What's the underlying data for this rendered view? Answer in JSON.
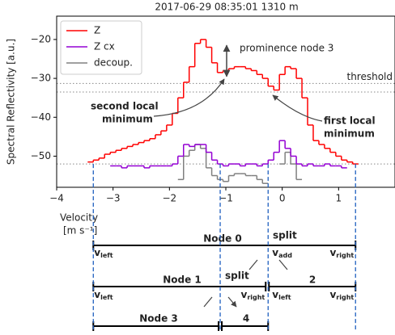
{
  "chart_data": {
    "type": "step",
    "title": "2017-06-29 08:35:01   1310 m",
    "ylabel": "Spectral Reflectivity [a.u.]",
    "xlabel": [
      "Velocity",
      "[m s⁻¹]"
    ],
    "x": [
      -3.4,
      -3.3,
      -3.2,
      -3.1,
      -3.0,
      -2.9,
      -2.8,
      -2.7,
      -2.6,
      -2.5,
      -2.4,
      -2.3,
      -2.2,
      -2.1,
      -2.0,
      -1.9,
      -1.8,
      -1.7,
      -1.6,
      -1.5,
      -1.4,
      -1.3,
      -1.2,
      -1.1,
      -1.0,
      -0.9,
      -0.8,
      -0.7,
      -0.6,
      -0.5,
      -0.4,
      -0.3,
      -0.2,
      -0.1,
      0.0,
      0.1,
      0.2,
      0.3,
      0.4,
      0.5,
      0.6,
      0.7,
      0.8,
      0.9,
      1.0,
      1.1,
      1.2,
      1.3
    ],
    "series": [
      {
        "name": "Z",
        "color": "#ff0000",
        "values": [
          -51.5,
          -51,
          -50.5,
          -49.5,
          -49,
          -48.5,
          -48,
          -47.5,
          -47,
          -46.5,
          -46,
          -45.5,
          -44.5,
          -43.5,
          -42,
          -39,
          -35,
          -31,
          -27,
          -21,
          -20,
          -22,
          -26,
          -28.5,
          -28,
          -27.5,
          -27,
          -27,
          -27.5,
          -28,
          -29,
          -30,
          -32,
          -33,
          -29,
          -27,
          -27.5,
          -30,
          -35,
          -42,
          -46,
          -47,
          -48,
          -49,
          -50,
          -51,
          -51.5,
          -52
        ]
      },
      {
        "name": "Z cx",
        "color": "#9400d3",
        "values": [
          null,
          null,
          null,
          null,
          -52.5,
          -52.5,
          -53,
          -52.5,
          -52.5,
          -52.5,
          -53,
          -52.5,
          -52.5,
          -52.5,
          -52.5,
          -52,
          -50,
          -47,
          -47.5,
          -47,
          -47,
          -49,
          -51,
          -52,
          -52.5,
          -52,
          -52,
          -52.5,
          -52,
          -52,
          -52.5,
          -52,
          -51,
          -49,
          -46,
          -48,
          -50,
          -52,
          -52.5,
          -52,
          -52.5,
          -52.5,
          -52,
          -52.5,
          -52.5,
          -53,
          null,
          null
        ]
      },
      {
        "name": "decoup.",
        "color": "#808080",
        "values": [
          null,
          null,
          null,
          null,
          null,
          null,
          null,
          null,
          null,
          null,
          null,
          null,
          null,
          null,
          null,
          null,
          -56,
          -50,
          -48.5,
          -47,
          -48,
          -53,
          -55,
          -56,
          -56.5,
          -55,
          -54.5,
          -54.5,
          -55,
          -55,
          -56,
          -57,
          null,
          null,
          -52,
          -49,
          -52,
          -56,
          null,
          null,
          null,
          null,
          null,
          null,
          null,
          null,
          null,
          null
        ]
      }
    ],
    "xlim": [
      -4,
      2
    ],
    "ylim": [
      -58,
      -14
    ],
    "xticks": [
      {
        "value": -4,
        "label": "−4"
      },
      {
        "value": -3,
        "label": "−3"
      },
      {
        "value": -2,
        "label": "−2"
      },
      {
        "value": -1,
        "label": "−1"
      },
      0,
      1
    ],
    "yticks": [
      {
        "value": -50,
        "label": "−50"
      },
      {
        "value": -40,
        "label": "−40"
      },
      {
        "value": -30,
        "label": "−30"
      },
      {
        "value": -20,
        "label": "−20"
      }
    ],
    "reference_lines": [
      {
        "value": -31.3,
        "label": "threshold"
      },
      {
        "value": -33.5
      },
      {
        "value": -52
      }
    ],
    "split_lines": [
      -3.35,
      -1.1,
      -0.25,
      1.3
    ],
    "annotations": {
      "prominence": "prominence node 3",
      "second": [
        "second local",
        "minimum"
      ],
      "first": [
        "first local",
        "minimum"
      ]
    },
    "legend": "upper left"
  },
  "diagram": {
    "row0": {
      "node": "Node 0",
      "split": "split",
      "labels": [
        {
          "base": "v",
          "sub": "left"
        },
        {
          "base": "v",
          "sub": "add"
        },
        {
          "base": "v",
          "sub": "right"
        }
      ]
    },
    "row1": {
      "node": "Node 1",
      "other": "2",
      "split": "split",
      "labels": [
        {
          "base": "v",
          "sub": "left"
        },
        {
          "base": "v",
          "sub": "right"
        },
        {
          "base": "v",
          "sub": "left"
        },
        {
          "base": "v",
          "sub": "right"
        }
      ]
    },
    "row2": {
      "node": "Node 3",
      "other": "4"
    }
  }
}
